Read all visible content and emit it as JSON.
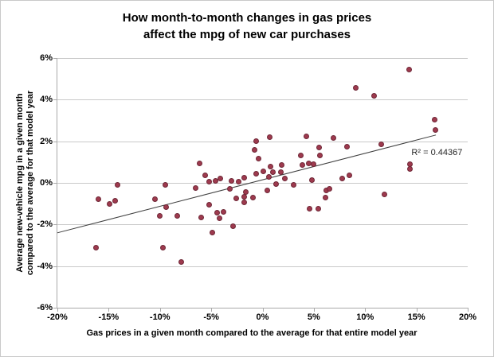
{
  "title": {
    "line1": "How month-to-month changes in gas prices",
    "line2": "affect the mpg of new car purchases"
  },
  "chart_data": {
    "type": "scatter",
    "title": "How month-to-month changes in gas prices affect the mpg of new car purchases",
    "xlabel": "Gas prices in a given month compared to the average for that entire model year",
    "ylabel": "Average new-vehicle mpg in a given month compared to the average for that model year",
    "ylabel_lines": [
      "Average new-vehicle mpg in a given month",
      "compared to the average for that model year"
    ],
    "xlim": [
      -20,
      20
    ],
    "ylim": [
      -6,
      6
    ],
    "x_ticks": [
      "-20%",
      "-15%",
      "-10%",
      "-5%",
      "0%",
      "5%",
      "10%",
      "15%",
      "20%"
    ],
    "x_tick_values": [
      -20,
      -15,
      -10,
      -5,
      0,
      5,
      10,
      15,
      20
    ],
    "y_ticks": [
      "6%",
      "4%",
      "2%",
      "0%",
      "-2%",
      "-4%",
      "-6%"
    ],
    "y_tick_values": [
      6,
      4,
      2,
      0,
      -2,
      -4,
      -6
    ],
    "grid": "horizontal-only",
    "legend": "none",
    "points": [
      [
        -16.2,
        -3.1
      ],
      [
        -16.0,
        -0.8
      ],
      [
        -14.9,
        -1.0
      ],
      [
        -14.4,
        -0.85
      ],
      [
        -14.1,
        -0.1
      ],
      [
        -10.5,
        -0.8
      ],
      [
        -10.0,
        -1.6
      ],
      [
        -9.7,
        -3.1
      ],
      [
        -9.5,
        -0.1
      ],
      [
        -9.4,
        -1.15
      ],
      [
        -8.3,
        -1.6
      ],
      [
        -7.9,
        -3.8
      ],
      [
        -6.5,
        -0.25
      ],
      [
        -6.1,
        0.95
      ],
      [
        -6.0,
        -1.65
      ],
      [
        -5.6,
        0.35
      ],
      [
        -5.2,
        0.05
      ],
      [
        -5.2,
        -1.05
      ],
      [
        -4.9,
        -2.4
      ],
      [
        -4.6,
        0.1
      ],
      [
        -4.4,
        -1.45
      ],
      [
        -4.2,
        -1.7
      ],
      [
        -4.1,
        0.2
      ],
      [
        -3.8,
        -1.4
      ],
      [
        -3.2,
        -0.3
      ],
      [
        -3.0,
        0.1
      ],
      [
        -2.9,
        -2.1
      ],
      [
        -2.6,
        -0.75
      ],
      [
        -2.3,
        0.05
      ],
      [
        -1.8,
        0.25
      ],
      [
        -1.8,
        -0.65
      ],
      [
        -1.8,
        -0.95
      ],
      [
        -1.6,
        -0.45
      ],
      [
        -0.9,
        -0.7
      ],
      [
        -0.8,
        1.6
      ],
      [
        -0.6,
        2.0
      ],
      [
        -0.6,
        0.45
      ],
      [
        -0.4,
        1.15
      ],
      [
        0.1,
        0.55
      ],
      [
        0.45,
        -0.35
      ],
      [
        0.6,
        0.3
      ],
      [
        0.7,
        2.2
      ],
      [
        0.8,
        0.8
      ],
      [
        1.0,
        0.5
      ],
      [
        1.3,
        -0.05
      ],
      [
        1.8,
        0.5
      ],
      [
        1.9,
        0.85
      ],
      [
        2.2,
        0.2
      ],
      [
        3.0,
        -0.1
      ],
      [
        3.7,
        1.3
      ],
      [
        3.9,
        0.85
      ],
      [
        4.3,
        2.25
      ],
      [
        4.5,
        0.95
      ],
      [
        4.6,
        -1.25
      ],
      [
        4.8,
        0.15
      ],
      [
        5.0,
        0.9
      ],
      [
        5.4,
        -1.25
      ],
      [
        5.5,
        1.7
      ],
      [
        5.6,
        1.3
      ],
      [
        6.1,
        -0.7
      ],
      [
        6.2,
        -0.35
      ],
      [
        6.5,
        -0.3
      ],
      [
        6.9,
        2.15
      ],
      [
        7.8,
        0.2
      ],
      [
        8.2,
        1.75
      ],
      [
        8.5,
        0.35
      ],
      [
        9.1,
        4.55
      ],
      [
        10.9,
        4.2
      ],
      [
        11.6,
        1.85
      ],
      [
        11.9,
        -0.55
      ],
      [
        14.3,
        5.45
      ],
      [
        14.4,
        0.9
      ],
      [
        14.4,
        0.65
      ],
      [
        16.75,
        3.05
      ],
      [
        16.85,
        2.55
      ]
    ],
    "trendline": {
      "x1": -20,
      "y1": -2.4,
      "x2": 16.9,
      "y2": 2.3
    },
    "r2_label": {
      "text": "R² = 0.44367",
      "x": 17.0,
      "y": 1.45
    },
    "point_color": "#9e3a4e",
    "point_border_color": "#6f2837",
    "grid_color": "#c9c9c9",
    "axis_color": "#a9a9a9",
    "trend_color": "#3f3f3f"
  }
}
